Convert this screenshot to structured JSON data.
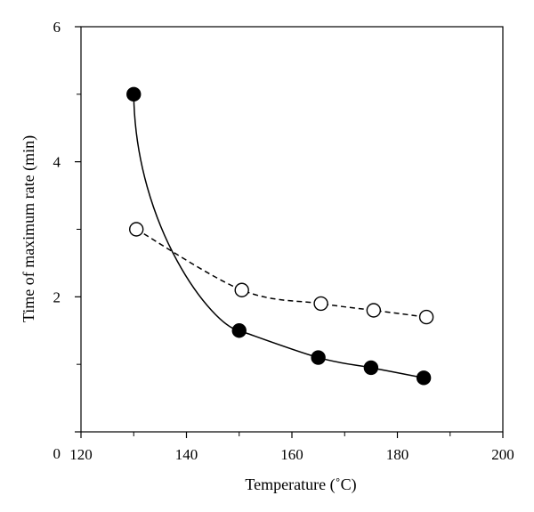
{
  "chart_data": {
    "type": "line",
    "title": "",
    "xlabel": "Temperature (˚C)",
    "ylabel": "Time of maximum rate (min)",
    "xlim": [
      120,
      200
    ],
    "ylim": [
      0,
      6
    ],
    "x_ticks": [
      120,
      140,
      160,
      180,
      200
    ],
    "y_tick_labels": [
      0,
      2,
      4,
      6
    ],
    "y_minor_ticks": [
      1,
      3,
      5
    ],
    "x_minor_ticks": [
      130,
      150,
      170,
      190
    ],
    "grid": false,
    "legend": "none",
    "series": [
      {
        "marker": "filled-circle",
        "line": "solid",
        "color": "#000000",
        "x": [
          130,
          150,
          165,
          175,
          185
        ],
        "y": [
          5.0,
          1.5,
          1.1,
          0.95,
          0.8
        ]
      },
      {
        "marker": "open-circle",
        "line": "dashed",
        "color": "#000000",
        "x": [
          130.5,
          150.5,
          165.5,
          175.5,
          185.5
        ],
        "y": [
          3.0,
          2.1,
          1.9,
          1.8,
          1.7
        ]
      }
    ]
  }
}
